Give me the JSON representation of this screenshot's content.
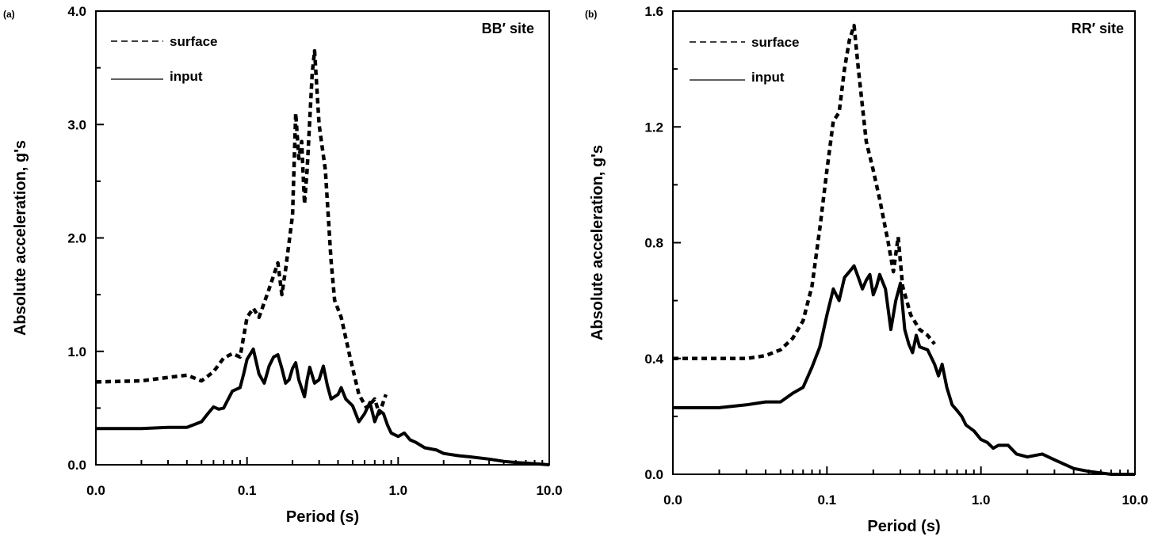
{
  "chart_data": [
    {
      "panel": "(a)",
      "type": "line",
      "annotation": "BB′ site",
      "xlabel": "Period (s)",
      "ylabel": "Absolute acceleration, g's",
      "xscale": "log",
      "xlim": [
        0.01,
        10
      ],
      "ylim": [
        0,
        4
      ],
      "x_tick_labels": [
        "0.0",
        "0.1",
        "1.0",
        "10.0"
      ],
      "y_ticks": [
        0,
        1,
        2,
        3,
        4
      ],
      "y_tick_labels": [
        "0.0",
        "1.0",
        "2.0",
        "3.0",
        "4.0"
      ],
      "legend": "top-left",
      "series": [
        {
          "name": "surface",
          "style": "dashed",
          "points": [
            [
              0.01,
              0.73
            ],
            [
              0.02,
              0.74
            ],
            [
              0.03,
              0.77
            ],
            [
              0.04,
              0.79
            ],
            [
              0.05,
              0.74
            ],
            [
              0.06,
              0.82
            ],
            [
              0.07,
              0.94
            ],
            [
              0.08,
              0.98
            ],
            [
              0.09,
              0.95
            ],
            [
              0.1,
              1.3
            ],
            [
              0.11,
              1.38
            ],
            [
              0.12,
              1.3
            ],
            [
              0.14,
              1.55
            ],
            [
              0.16,
              1.78
            ],
            [
              0.17,
              1.5
            ],
            [
              0.18,
              1.72
            ],
            [
              0.2,
              2.2
            ],
            [
              0.21,
              3.1
            ],
            [
              0.22,
              2.7
            ],
            [
              0.23,
              2.85
            ],
            [
              0.24,
              2.3
            ],
            [
              0.25,
              2.6
            ],
            [
              0.27,
              3.45
            ],
            [
              0.28,
              3.65
            ],
            [
              0.3,
              3.0
            ],
            [
              0.33,
              2.6
            ],
            [
              0.36,
              1.8
            ],
            [
              0.38,
              1.45
            ],
            [
              0.42,
              1.3
            ],
            [
              0.48,
              0.95
            ],
            [
              0.55,
              0.62
            ],
            [
              0.62,
              0.5
            ],
            [
              0.7,
              0.58
            ],
            [
              0.75,
              0.45
            ],
            [
              0.83,
              0.62
            ]
          ]
        },
        {
          "name": "input",
          "style": "solid",
          "points": [
            [
              0.01,
              0.32
            ],
            [
              0.02,
              0.32
            ],
            [
              0.03,
              0.33
            ],
            [
              0.04,
              0.33
            ],
            [
              0.05,
              0.38
            ],
            [
              0.055,
              0.45
            ],
            [
              0.06,
              0.51
            ],
            [
              0.065,
              0.49
            ],
            [
              0.07,
              0.5
            ],
            [
              0.08,
              0.65
            ],
            [
              0.09,
              0.68
            ],
            [
              0.095,
              0.8
            ],
            [
              0.1,
              0.93
            ],
            [
              0.11,
              1.02
            ],
            [
              0.12,
              0.8
            ],
            [
              0.13,
              0.72
            ],
            [
              0.14,
              0.87
            ],
            [
              0.15,
              0.95
            ],
            [
              0.16,
              0.97
            ],
            [
              0.17,
              0.85
            ],
            [
              0.18,
              0.72
            ],
            [
              0.19,
              0.75
            ],
            [
              0.2,
              0.85
            ],
            [
              0.21,
              0.9
            ],
            [
              0.22,
              0.75
            ],
            [
              0.24,
              0.6
            ],
            [
              0.25,
              0.75
            ],
            [
              0.26,
              0.86
            ],
            [
              0.28,
              0.72
            ],
            [
              0.3,
              0.75
            ],
            [
              0.32,
              0.87
            ],
            [
              0.34,
              0.7
            ],
            [
              0.36,
              0.58
            ],
            [
              0.4,
              0.62
            ],
            [
              0.42,
              0.68
            ],
            [
              0.45,
              0.58
            ],
            [
              0.5,
              0.52
            ],
            [
              0.55,
              0.38
            ],
            [
              0.6,
              0.45
            ],
            [
              0.65,
              0.55
            ],
            [
              0.7,
              0.38
            ],
            [
              0.75,
              0.48
            ],
            [
              0.8,
              0.45
            ],
            [
              0.85,
              0.35
            ],
            [
              0.9,
              0.28
            ],
            [
              1.0,
              0.25
            ],
            [
              1.1,
              0.28
            ],
            [
              1.2,
              0.22
            ],
            [
              1.3,
              0.2
            ],
            [
              1.5,
              0.15
            ],
            [
              1.8,
              0.13
            ],
            [
              2.0,
              0.1
            ],
            [
              2.5,
              0.08
            ],
            [
              3.0,
              0.07
            ],
            [
              4.0,
              0.05
            ],
            [
              5.0,
              0.03
            ],
            [
              6.0,
              0.02
            ],
            [
              8.0,
              0.01
            ],
            [
              10.0,
              0.0
            ]
          ]
        }
      ]
    },
    {
      "panel": "(b)",
      "type": "line",
      "annotation": "RR′ site",
      "xlabel": "Period (s)",
      "ylabel": "Absolute acceleration, g's",
      "xscale": "log",
      "xlim": [
        0.01,
        10
      ],
      "ylim": [
        0,
        1.6
      ],
      "x_tick_labels": [
        "0.0",
        "0.1",
        "1.0",
        "10.0"
      ],
      "y_ticks": [
        0,
        0.4,
        0.8,
        1.2,
        1.6
      ],
      "y_tick_labels": [
        "0.0",
        "0.4",
        "0.8",
        "1.2",
        "1.6"
      ],
      "legend": "top-left",
      "series": [
        {
          "name": "surface",
          "style": "dashed",
          "points": [
            [
              0.01,
              0.4
            ],
            [
              0.02,
              0.4
            ],
            [
              0.03,
              0.4
            ],
            [
              0.04,
              0.41
            ],
            [
              0.05,
              0.43
            ],
            [
              0.06,
              0.47
            ],
            [
              0.07,
              0.53
            ],
            [
              0.08,
              0.65
            ],
            [
              0.09,
              0.85
            ],
            [
              0.1,
              1.05
            ],
            [
              0.11,
              1.22
            ],
            [
              0.12,
              1.25
            ],
            [
              0.13,
              1.4
            ],
            [
              0.14,
              1.5
            ],
            [
              0.15,
              1.55
            ],
            [
              0.16,
              1.4
            ],
            [
              0.18,
              1.15
            ],
            [
              0.2,
              1.05
            ],
            [
              0.22,
              0.95
            ],
            [
              0.25,
              0.8
            ],
            [
              0.27,
              0.7
            ],
            [
              0.29,
              0.82
            ],
            [
              0.31,
              0.65
            ],
            [
              0.35,
              0.55
            ],
            [
              0.4,
              0.5
            ],
            [
              0.45,
              0.48
            ],
            [
              0.5,
              0.45
            ]
          ]
        },
        {
          "name": "input",
          "style": "solid",
          "points": [
            [
              0.01,
              0.23
            ],
            [
              0.02,
              0.23
            ],
            [
              0.03,
              0.24
            ],
            [
              0.04,
              0.25
            ],
            [
              0.05,
              0.25
            ],
            [
              0.06,
              0.28
            ],
            [
              0.07,
              0.3
            ],
            [
              0.08,
              0.37
            ],
            [
              0.09,
              0.44
            ],
            [
              0.1,
              0.55
            ],
            [
              0.11,
              0.64
            ],
            [
              0.12,
              0.6
            ],
            [
              0.13,
              0.68
            ],
            [
              0.14,
              0.7
            ],
            [
              0.15,
              0.72
            ],
            [
              0.16,
              0.68
            ],
            [
              0.17,
              0.64
            ],
            [
              0.18,
              0.67
            ],
            [
              0.19,
              0.69
            ],
            [
              0.2,
              0.62
            ],
            [
              0.21,
              0.65
            ],
            [
              0.22,
              0.69
            ],
            [
              0.24,
              0.64
            ],
            [
              0.26,
              0.5
            ],
            [
              0.28,
              0.6
            ],
            [
              0.3,
              0.66
            ],
            [
              0.32,
              0.5
            ],
            [
              0.34,
              0.45
            ],
            [
              0.36,
              0.42
            ],
            [
              0.38,
              0.48
            ],
            [
              0.4,
              0.44
            ],
            [
              0.45,
              0.43
            ],
            [
              0.5,
              0.38
            ],
            [
              0.53,
              0.34
            ],
            [
              0.56,
              0.38
            ],
            [
              0.6,
              0.3
            ],
            [
              0.65,
              0.24
            ],
            [
              0.7,
              0.22
            ],
            [
              0.75,
              0.2
            ],
            [
              0.8,
              0.17
            ],
            [
              0.9,
              0.15
            ],
            [
              1.0,
              0.12
            ],
            [
              1.1,
              0.11
            ],
            [
              1.2,
              0.09
            ],
            [
              1.3,
              0.1
            ],
            [
              1.5,
              0.1
            ],
            [
              1.7,
              0.07
            ],
            [
              2.0,
              0.06
            ],
            [
              2.5,
              0.07
            ],
            [
              3.0,
              0.05
            ],
            [
              4.0,
              0.02
            ],
            [
              5.0,
              0.01
            ],
            [
              7.0,
              0.0
            ],
            [
              10.0,
              0.0
            ]
          ]
        }
      ]
    }
  ]
}
